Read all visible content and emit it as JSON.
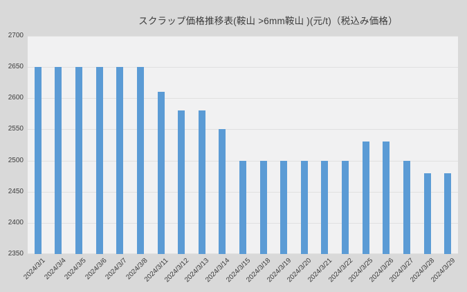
{
  "chart_data": {
    "type": "bar",
    "title": "スクラップ価格推移表(鞍山 >6mm鞍山 )(元/t)（税込み価格）",
    "categories": [
      "2024/3/1",
      "2024/3/4",
      "2024/3/5",
      "2024/3/6",
      "2024/3/7",
      "2024/3/8",
      "2024/3/11",
      "2024/3/12",
      "2024/3/13",
      "2024/3/14",
      "2024/3/15",
      "2024/3/18",
      "2024/3/19",
      "2024/3/20",
      "2024/3/21",
      "2024/3/22",
      "2024/3/25",
      "2024/3/26",
      "2024/3/27",
      "2024/3/28",
      "2024/3/29"
    ],
    "values": [
      2650,
      2650,
      2650,
      2650,
      2650,
      2650,
      2610,
      2580,
      2580,
      2550,
      2500,
      2500,
      2500,
      2500,
      2500,
      2500,
      2530,
      2530,
      2500,
      2480,
      2480
    ],
    "xlabel": "",
    "ylabel": "",
    "ylim": [
      2350,
      2700
    ],
    "ytick_step": 50,
    "legend": "none",
    "grid": "horizontal",
    "colors": {
      "bar": "#5B9BD5",
      "chart_background": "#D9D9D9",
      "plot_background": "#F1F1F2",
      "gridline": "#E0E0E0",
      "text": "#3B3B3B"
    }
  }
}
